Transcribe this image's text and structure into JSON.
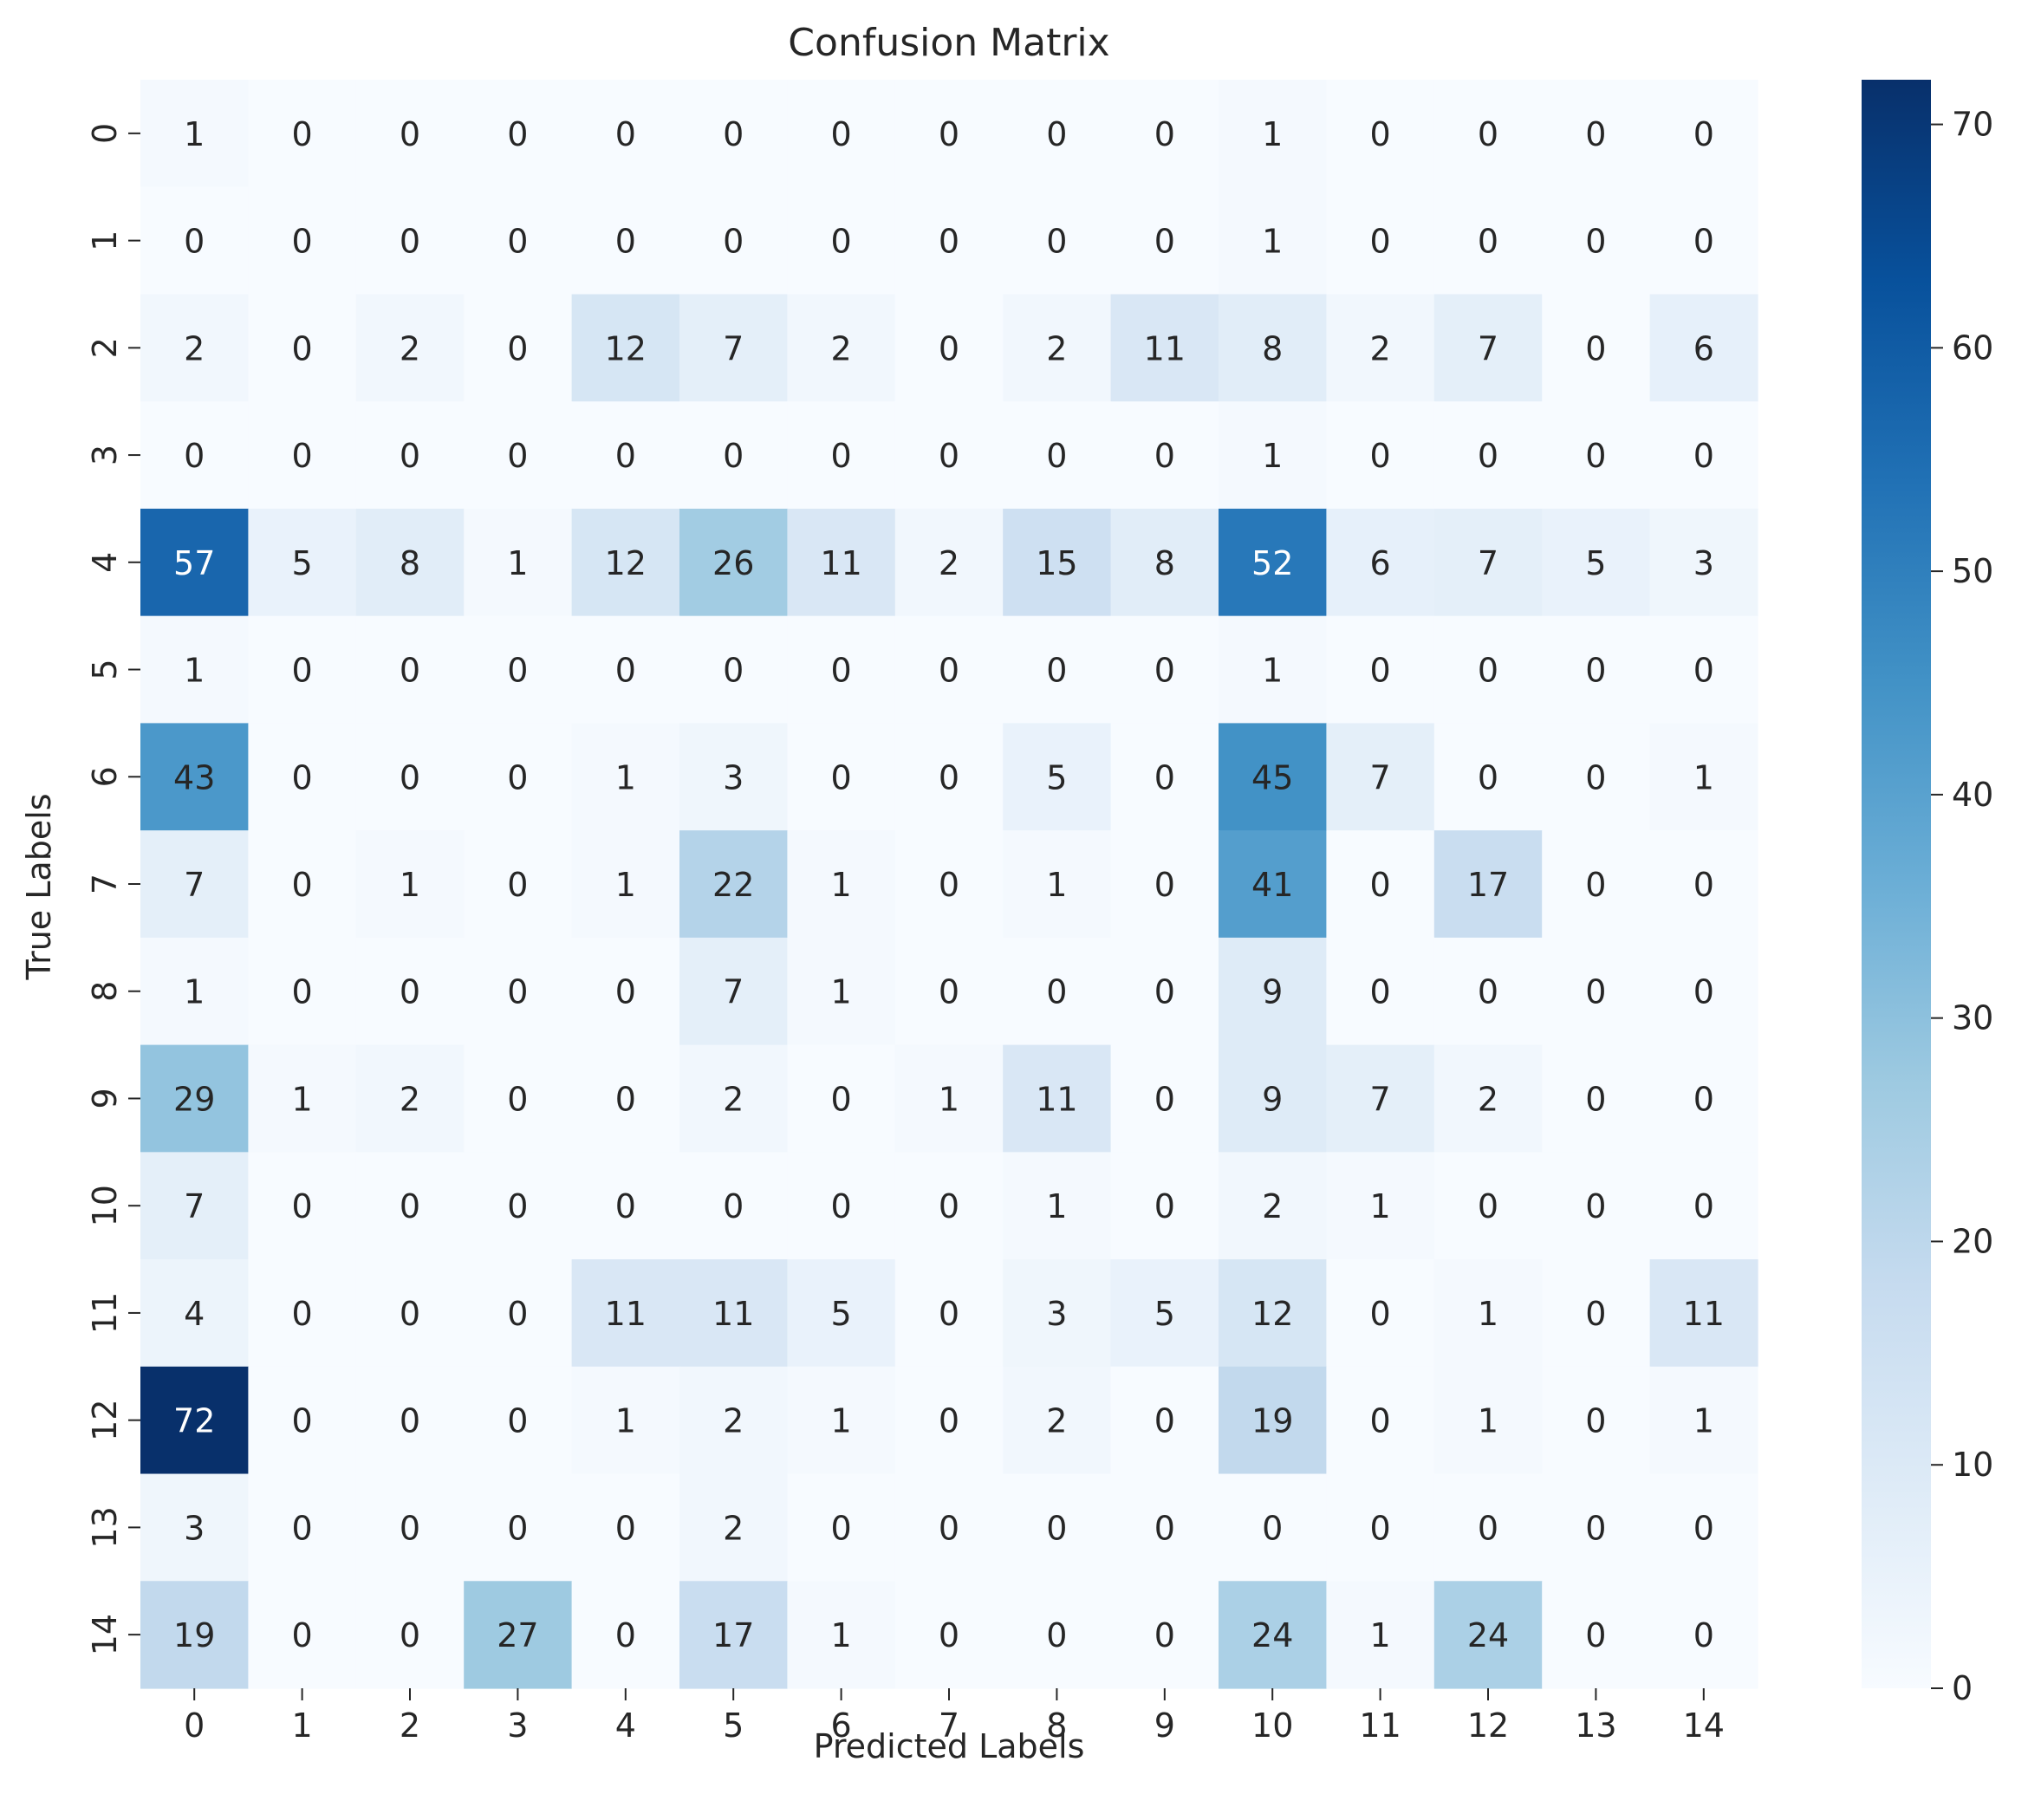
{
  "chart_data": {
    "type": "heatmap",
    "title": "Confusion Matrix",
    "xlabel": "Predicted Labels",
    "ylabel": "True Labels",
    "x_categories": [
      "0",
      "1",
      "2",
      "3",
      "4",
      "5",
      "6",
      "7",
      "8",
      "9",
      "10",
      "11",
      "12",
      "13",
      "14"
    ],
    "y_categories": [
      "0",
      "1",
      "2",
      "3",
      "4",
      "5",
      "6",
      "7",
      "8",
      "9",
      "10",
      "11",
      "12",
      "13",
      "14"
    ],
    "values": [
      [
        1,
        0,
        0,
        0,
        0,
        0,
        0,
        0,
        0,
        0,
        1,
        0,
        0,
        0,
        0
      ],
      [
        0,
        0,
        0,
        0,
        0,
        0,
        0,
        0,
        0,
        0,
        1,
        0,
        0,
        0,
        0
      ],
      [
        2,
        0,
        2,
        0,
        12,
        7,
        2,
        0,
        2,
        11,
        8,
        2,
        7,
        0,
        6
      ],
      [
        0,
        0,
        0,
        0,
        0,
        0,
        0,
        0,
        0,
        0,
        1,
        0,
        0,
        0,
        0
      ],
      [
        57,
        5,
        8,
        1,
        12,
        26,
        11,
        2,
        15,
        8,
        52,
        6,
        7,
        5,
        3
      ],
      [
        1,
        0,
        0,
        0,
        0,
        0,
        0,
        0,
        0,
        0,
        1,
        0,
        0,
        0,
        0
      ],
      [
        43,
        0,
        0,
        0,
        1,
        3,
        0,
        0,
        5,
        0,
        45,
        7,
        0,
        0,
        1
      ],
      [
        7,
        0,
        1,
        0,
        1,
        22,
        1,
        0,
        1,
        0,
        41,
        0,
        17,
        0,
        0
      ],
      [
        1,
        0,
        0,
        0,
        0,
        7,
        1,
        0,
        0,
        0,
        9,
        0,
        0,
        0,
        0
      ],
      [
        29,
        1,
        2,
        0,
        0,
        2,
        0,
        1,
        11,
        0,
        9,
        7,
        2,
        0,
        0
      ],
      [
        7,
        0,
        0,
        0,
        0,
        0,
        0,
        0,
        1,
        0,
        2,
        1,
        0,
        0,
        0
      ],
      [
        4,
        0,
        0,
        0,
        11,
        11,
        5,
        0,
        3,
        5,
        12,
        0,
        1,
        0,
        11
      ],
      [
        72,
        0,
        0,
        0,
        1,
        2,
        1,
        0,
        2,
        0,
        19,
        0,
        1,
        0,
        1
      ],
      [
        3,
        0,
        0,
        0,
        0,
        2,
        0,
        0,
        0,
        0,
        0,
        0,
        0,
        0,
        0
      ],
      [
        19,
        0,
        0,
        27,
        0,
        17,
        1,
        0,
        0,
        0,
        24,
        1,
        24,
        0,
        0
      ]
    ],
    "colormap": "Blues",
    "vmin": 0,
    "vmax": 72,
    "colorbar_ticks": [
      "0",
      "10",
      "20",
      "30",
      "40",
      "50",
      "60",
      "70"
    ],
    "colors": {
      "low": "#f7fbff",
      "high": "#08306b",
      "text_dark": "#262626",
      "text_light": "#ffffff"
    }
  }
}
